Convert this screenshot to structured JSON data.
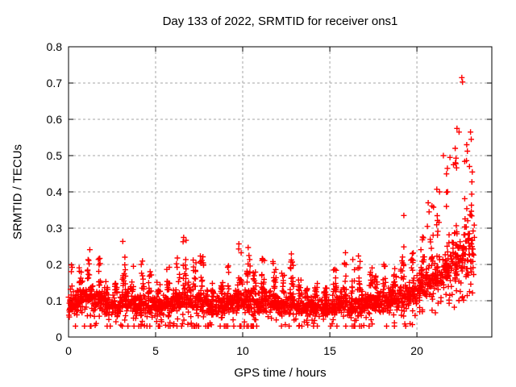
{
  "page": {
    "background": "#ffffff"
  },
  "chart_data": {
    "type": "scatter",
    "title": "Day 133 of 2022, SRMTID for receiver ons1",
    "xlabel": "GPS time / hours",
    "ylabel": "SRMTID / TECUs",
    "xlim": [
      0,
      24.3
    ],
    "ylim": [
      0,
      0.8
    ],
    "xticks": [
      0,
      5,
      10,
      15,
      20
    ],
    "yticks": [
      0,
      0.1,
      0.2,
      0.3,
      0.4,
      0.5,
      0.6,
      0.7,
      0.8
    ],
    "grid": true,
    "grid_style": "dashed",
    "legend": "none",
    "marker": "plus",
    "colors": {
      "points": "#ff0000",
      "grid": "#a6a6a6",
      "frame": "#000000",
      "text": "#000000"
    },
    "series": [
      {
        "name": "SRMTID",
        "t_start": 0.0,
        "t_end": 23.3,
        "bin_hours": 0.5,
        "points_per_bin": 55,
        "seed": 20220513,
        "profile_columns": [
          "start_hour",
          "band_lo_TECU",
          "band_hi_TECU",
          "spike_max_TECU"
        ],
        "envelope_profile": [
          [
            0.0,
            0.05,
            0.13,
            0.25
          ],
          [
            0.5,
            0.06,
            0.15,
            0.26
          ],
          [
            1.0,
            0.06,
            0.16,
            0.26
          ],
          [
            1.5,
            0.06,
            0.14,
            0.22
          ],
          [
            2.0,
            0.05,
            0.12,
            0.17
          ],
          [
            2.5,
            0.05,
            0.12,
            0.18
          ],
          [
            3.0,
            0.06,
            0.14,
            0.27
          ],
          [
            3.5,
            0.05,
            0.13,
            0.2
          ],
          [
            4.0,
            0.05,
            0.13,
            0.25
          ],
          [
            4.5,
            0.05,
            0.12,
            0.18
          ],
          [
            5.0,
            0.05,
            0.12,
            0.16
          ],
          [
            5.5,
            0.05,
            0.13,
            0.2
          ],
          [
            6.0,
            0.06,
            0.14,
            0.24
          ],
          [
            6.5,
            0.06,
            0.16,
            0.275
          ],
          [
            7.0,
            0.05,
            0.14,
            0.22
          ],
          [
            7.5,
            0.06,
            0.14,
            0.23
          ],
          [
            8.0,
            0.04,
            0.11,
            0.16
          ],
          [
            8.5,
            0.05,
            0.12,
            0.16
          ],
          [
            9.0,
            0.06,
            0.13,
            0.2
          ],
          [
            9.5,
            0.06,
            0.15,
            0.27
          ],
          [
            10.0,
            0.06,
            0.14,
            0.25
          ],
          [
            10.5,
            0.05,
            0.13,
            0.19
          ],
          [
            11.0,
            0.06,
            0.13,
            0.22
          ],
          [
            11.5,
            0.06,
            0.13,
            0.22
          ],
          [
            12.0,
            0.05,
            0.12,
            0.18
          ],
          [
            12.5,
            0.06,
            0.13,
            0.24
          ],
          [
            13.0,
            0.05,
            0.11,
            0.16
          ],
          [
            13.5,
            0.05,
            0.11,
            0.14
          ],
          [
            14.0,
            0.05,
            0.11,
            0.15
          ],
          [
            14.5,
            0.05,
            0.11,
            0.14
          ],
          [
            15.0,
            0.05,
            0.12,
            0.2
          ],
          [
            15.5,
            0.06,
            0.13,
            0.26
          ],
          [
            16.0,
            0.04,
            0.12,
            0.24
          ],
          [
            16.5,
            0.05,
            0.13,
            0.24
          ],
          [
            17.0,
            0.06,
            0.14,
            0.2
          ],
          [
            17.5,
            0.06,
            0.13,
            0.18
          ],
          [
            18.0,
            0.06,
            0.14,
            0.22
          ],
          [
            18.5,
            0.07,
            0.14,
            0.2
          ],
          [
            19.0,
            0.07,
            0.16,
            0.3
          ],
          [
            19.5,
            0.08,
            0.16,
            0.25
          ],
          [
            20.0,
            0.09,
            0.18,
            0.28
          ],
          [
            20.5,
            0.1,
            0.2,
            0.37
          ],
          [
            21.0,
            0.11,
            0.22,
            0.42
          ],
          [
            21.5,
            0.12,
            0.25,
            0.48
          ],
          [
            22.0,
            0.13,
            0.28,
            0.55
          ],
          [
            22.5,
            0.14,
            0.3,
            0.58
          ],
          [
            23.0,
            0.15,
            0.33,
            0.52
          ]
        ],
        "notable_points": [
          [
            22.58,
            0.715
          ],
          [
            22.62,
            0.703
          ],
          [
            22.3,
            0.575
          ],
          [
            22.42,
            0.565
          ],
          [
            23.08,
            0.565
          ],
          [
            23.12,
            0.545
          ],
          [
            22.86,
            0.53
          ],
          [
            22.2,
            0.52
          ],
          [
            21.52,
            0.5
          ],
          [
            21.9,
            0.495
          ],
          [
            22.1,
            0.475
          ],
          [
            23.02,
            0.47
          ],
          [
            21.75,
            0.465
          ],
          [
            23.18,
            0.455
          ],
          [
            21.3,
            0.4
          ],
          [
            20.65,
            0.37
          ],
          [
            20.7,
            0.345
          ],
          [
            19.25,
            0.335
          ],
          [
            20.6,
            0.305
          ],
          [
            22.15,
            0.082
          ]
        ]
      }
    ]
  }
}
